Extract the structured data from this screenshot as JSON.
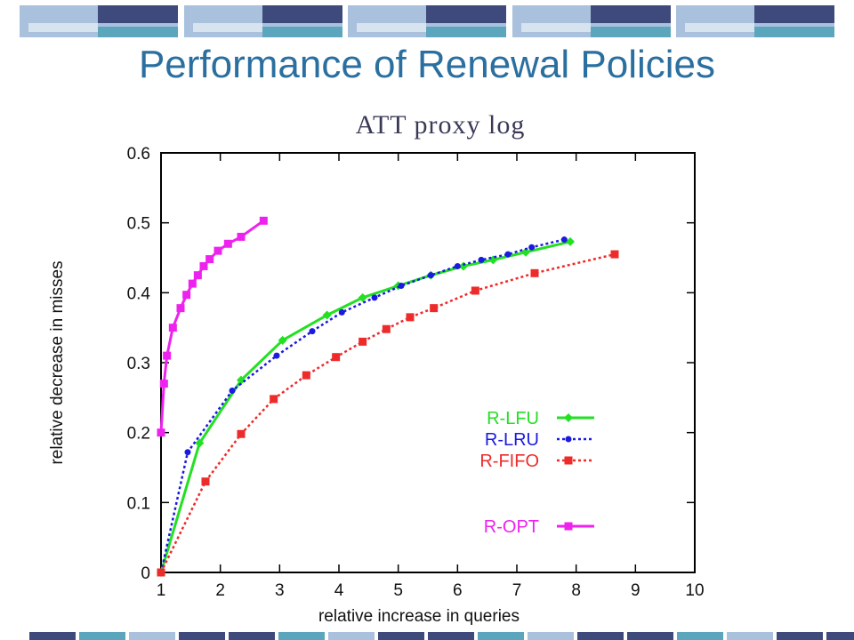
{
  "slide": {
    "title": "Performance of Renewal Policies"
  },
  "colors": {
    "title": "#2a6f9f",
    "band_dark": "#3f4a7c",
    "band_light": "#a9c1dd",
    "band_teal": "#5ba6bc",
    "R-LFU": "#22e022",
    "R-LRU": "#1a1ae0",
    "R-FIFO": "#ee2b2b",
    "R-OPT": "#ee22ee"
  },
  "chart_data": {
    "type": "line",
    "title": "ATT proxy log",
    "xlabel": "relative increase in queries",
    "ylabel": "relative decrease in misses",
    "xlim": [
      1,
      10
    ],
    "ylim": [
      0,
      0.6
    ],
    "xticks": [
      "1",
      "2",
      "3",
      "4",
      "5",
      "6",
      "7",
      "8",
      "9",
      "10"
    ],
    "yticks": [
      "0",
      "0.1",
      "0.2",
      "0.3",
      "0.4",
      "0.5",
      "0.6"
    ],
    "grid": false,
    "legend_position": "bottom-right",
    "series": [
      {
        "name": "R-LFU",
        "style": "solid",
        "marker": "diamond",
        "x": [
          1.0,
          1.65,
          2.35,
          3.05,
          3.8,
          4.4,
          5.0,
          5.55,
          6.1,
          6.6,
          7.15,
          7.9
        ],
        "y": [
          0.0,
          0.185,
          0.275,
          0.332,
          0.368,
          0.393,
          0.41,
          0.425,
          0.438,
          0.447,
          0.458,
          0.473
        ]
      },
      {
        "name": "R-LRU",
        "style": "dotted",
        "marker": "dot",
        "x": [
          1.0,
          1.45,
          2.2,
          2.95,
          3.55,
          4.05,
          4.6,
          5.05,
          5.55,
          6.0,
          6.4,
          6.85,
          7.25,
          7.8
        ],
        "y": [
          0.0,
          0.172,
          0.26,
          0.31,
          0.345,
          0.372,
          0.393,
          0.41,
          0.425,
          0.438,
          0.447,
          0.455,
          0.465,
          0.476
        ]
      },
      {
        "name": "R-FIFO",
        "style": "dotted",
        "marker": "square",
        "x": [
          1.0,
          1.75,
          2.35,
          2.9,
          3.45,
          3.95,
          4.4,
          4.8,
          5.2,
          5.6,
          6.3,
          7.3,
          8.65
        ],
        "y": [
          0.0,
          0.13,
          0.198,
          0.248,
          0.282,
          0.308,
          0.33,
          0.348,
          0.365,
          0.378,
          0.403,
          0.428,
          0.455
        ]
      },
      {
        "name": "R-OPT",
        "style": "solid",
        "marker": "square",
        "x": [
          1.0,
          1.05,
          1.1,
          1.2,
          1.33,
          1.43,
          1.53,
          1.62,
          1.72,
          1.82,
          1.96,
          2.13,
          2.35,
          2.73
        ],
        "y": [
          0.2,
          0.27,
          0.31,
          0.35,
          0.378,
          0.397,
          0.413,
          0.425,
          0.438,
          0.448,
          0.46,
          0.47,
          0.48,
          0.503
        ]
      }
    ]
  }
}
